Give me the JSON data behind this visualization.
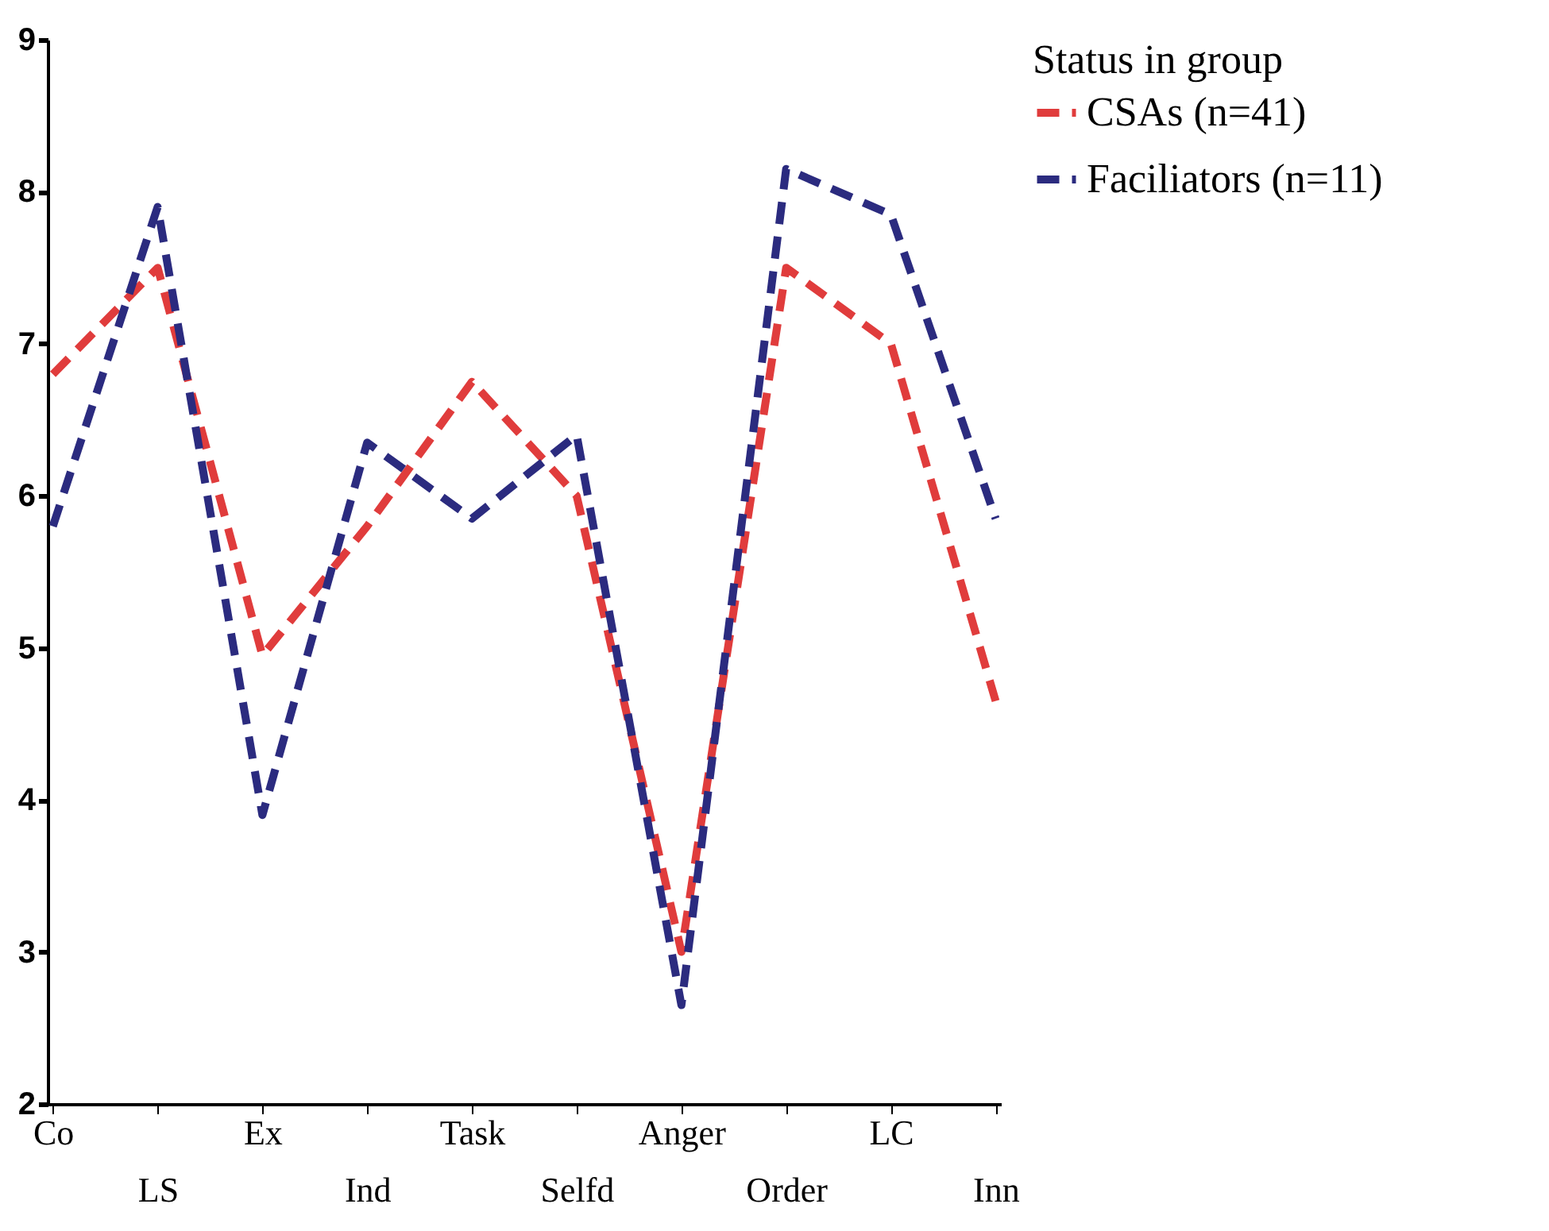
{
  "chart_data": {
    "type": "line",
    "legend_title": "Status in group",
    "categories": [
      "Co",
      "LS",
      "Ex",
      "Ind",
      "Task",
      "Selfd",
      "Anger",
      "Order",
      "LC",
      "Inn"
    ],
    "series": [
      {
        "name": "CSAs (n=41)",
        "color": "#e03c3c",
        "line_style": "dashed",
        "values": [
          6.8,
          7.5,
          4.95,
          5.8,
          6.75,
          6.0,
          3.0,
          7.5,
          7.0,
          4.65
        ]
      },
      {
        "name": "Faciliators (n=11)",
        "color": "#2b2b7f",
        "line_style": "dashed",
        "values": [
          5.8,
          7.9,
          3.9,
          6.35,
          5.85,
          6.4,
          2.65,
          8.15,
          7.85,
          5.85
        ]
      }
    ],
    "ylim": [
      2,
      9
    ],
    "yticks": [
      2,
      3,
      4,
      5,
      6,
      7,
      8,
      9
    ],
    "grid": false,
    "legend": "right",
    "marker": "none"
  }
}
